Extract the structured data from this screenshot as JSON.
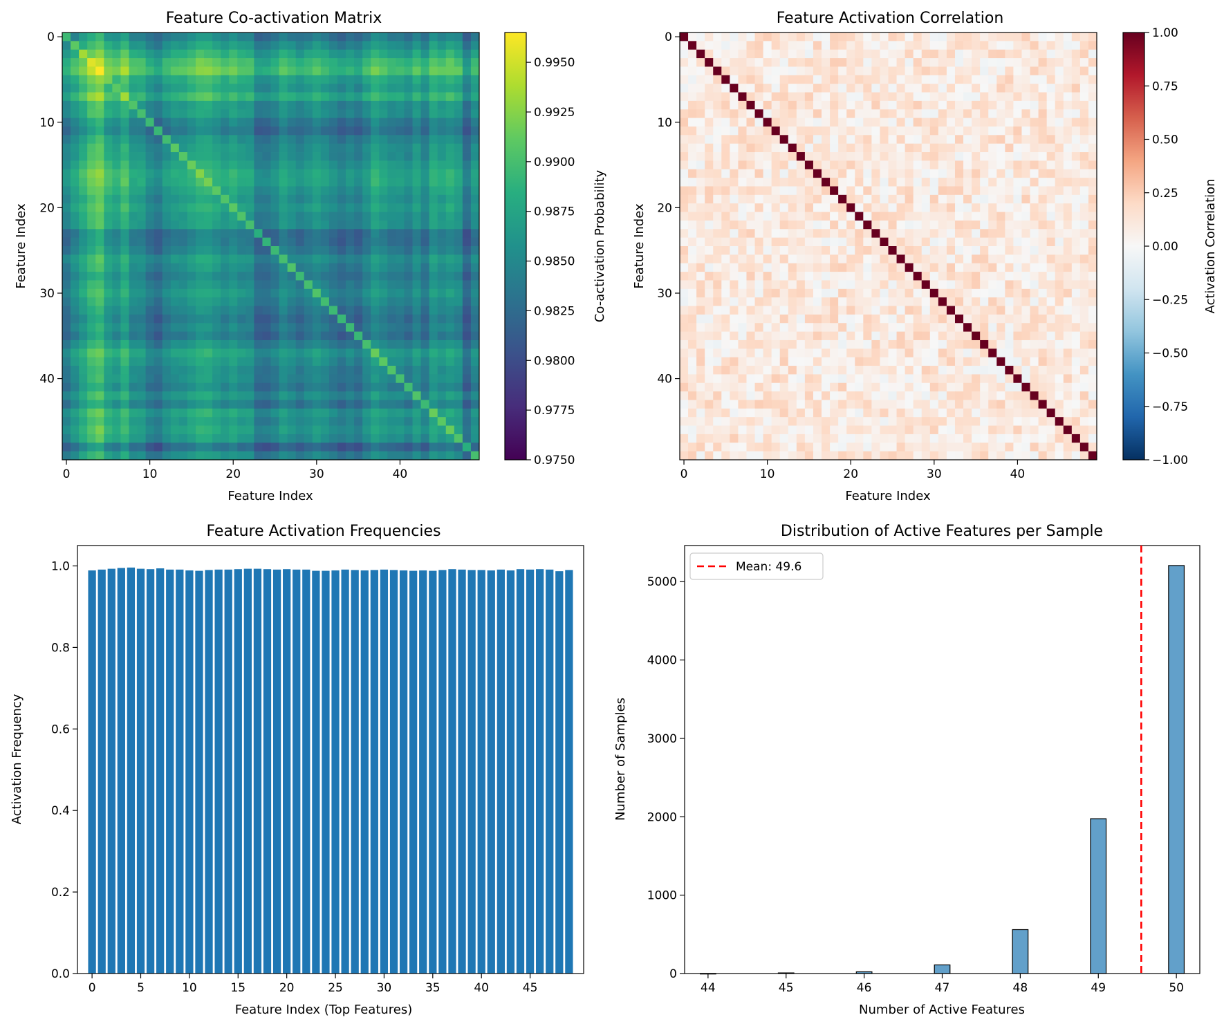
{
  "chart_data": [
    {
      "type": "heatmap",
      "title": "Feature Co-activation Matrix",
      "xlabel": "Feature Index",
      "ylabel": "Feature Index",
      "size": 50,
      "xticks": [
        0,
        10,
        20,
        30,
        40
      ],
      "yticks": [
        0,
        10,
        20,
        30,
        40
      ],
      "colormap": "viridis",
      "colorbar": {
        "label": "Co-activation Probability",
        "range": [
          0.975,
          0.9965
        ],
        "ticks": [
          "0.9950",
          "0.9925",
          "0.9900",
          "0.9875",
          "0.9850",
          "0.9825",
          "0.9800",
          "0.9775",
          "0.9750"
        ],
        "tick_values": [
          0.995,
          0.9925,
          0.99,
          0.9875,
          0.985,
          0.9825,
          0.98,
          0.9775,
          0.975
        ]
      },
      "diagonal_values": [
        0.9895,
        0.991,
        0.9935,
        0.9955,
        0.9965,
        0.992,
        0.991,
        0.9935,
        0.9905,
        0.99,
        0.9895,
        0.9893,
        0.9898,
        0.991,
        0.9908,
        0.9915,
        0.9925,
        0.992,
        0.991,
        0.9905,
        0.991,
        0.9905,
        0.99,
        0.9885,
        0.989,
        0.9895,
        0.99,
        0.9905,
        0.9895,
        0.99,
        0.9905,
        0.9898,
        0.9895,
        0.9893,
        0.9895,
        0.9893,
        0.99,
        0.9915,
        0.991,
        0.9905,
        0.99,
        0.9897,
        0.9905,
        0.9895,
        0.9915,
        0.991,
        0.9915,
        0.9905,
        0.9885,
        0.99
      ],
      "activation_frequencies": [
        0.989,
        0.991,
        0.993,
        0.995,
        0.996,
        0.993,
        0.992,
        0.994,
        0.991,
        0.991,
        0.989,
        0.988,
        0.99,
        0.991,
        0.991,
        0.992,
        0.993,
        0.993,
        0.992,
        0.991,
        0.992,
        0.991,
        0.991,
        0.988,
        0.988,
        0.989,
        0.991,
        0.99,
        0.989,
        0.99,
        0.991,
        0.99,
        0.989,
        0.988,
        0.989,
        0.988,
        0.99,
        0.992,
        0.991,
        0.99,
        0.99,
        0.989,
        0.991,
        0.989,
        0.992,
        0.991,
        0.992,
        0.991,
        0.987,
        0.99
      ]
    },
    {
      "type": "heatmap",
      "title": "Feature Activation Correlation",
      "xlabel": "Feature Index",
      "ylabel": "Feature Index",
      "size": 50,
      "xticks": [
        0,
        10,
        20,
        30,
        40
      ],
      "yticks": [
        0,
        10,
        20,
        30,
        40
      ],
      "colormap": "RdBu_r",
      "diagonal_value": 1.0,
      "offdiag_range": [
        -0.06,
        0.25
      ],
      "colorbar": {
        "label": "Activation Correlation",
        "range": [
          -1,
          1
        ],
        "ticks": [
          "1.00",
          "0.75",
          "0.50",
          "0.25",
          "0.00",
          "−0.25",
          "−0.50",
          "−0.75",
          "−1.00"
        ],
        "tick_values": [
          1,
          0.75,
          0.5,
          0.25,
          0,
          -0.25,
          -0.5,
          -0.75,
          -1
        ]
      }
    },
    {
      "type": "bar",
      "title": "Feature Activation Frequencies",
      "xlabel": "Feature Index (Top Features)",
      "ylabel": "Activation Frequency",
      "color": "#1f77b4",
      "ylim": [
        0,
        1.05
      ],
      "xlim": [
        -1.5,
        50.5
      ],
      "xticks": [
        0,
        5,
        10,
        15,
        20,
        25,
        30,
        35,
        40,
        45
      ],
      "yticks": [
        "0.0",
        "0.2",
        "0.4",
        "0.6",
        "0.8",
        "1.0"
      ],
      "ytick_values": [
        0,
        0.2,
        0.4,
        0.6,
        0.8,
        1.0
      ],
      "values": [
        0.989,
        0.991,
        0.993,
        0.995,
        0.996,
        0.993,
        0.992,
        0.994,
        0.991,
        0.991,
        0.989,
        0.988,
        0.99,
        0.991,
        0.991,
        0.992,
        0.993,
        0.993,
        0.992,
        0.991,
        0.992,
        0.991,
        0.991,
        0.988,
        0.988,
        0.989,
        0.991,
        0.99,
        0.989,
        0.99,
        0.991,
        0.99,
        0.989,
        0.988,
        0.989,
        0.988,
        0.99,
        0.992,
        0.991,
        0.99,
        0.99,
        0.989,
        0.991,
        0.989,
        0.992,
        0.991,
        0.992,
        0.991,
        0.987,
        0.99
      ]
    },
    {
      "type": "bar",
      "title": "Distribution of Active Features per Sample",
      "xlabel": "Number of Active Features",
      "ylabel": "Number of Samples",
      "color": "#1f77b4",
      "xlim": [
        43.7,
        50.3
      ],
      "ylim": [
        0,
        5460
      ],
      "xticks": [
        44,
        45,
        46,
        47,
        48,
        49,
        50
      ],
      "yticks": [
        0,
        1000,
        2000,
        3000,
        4000,
        5000
      ],
      "bin_width": 0.2,
      "bins": [
        {
          "x": 44,
          "count": 1
        },
        {
          "x": 45,
          "count": 8
        },
        {
          "x": 46,
          "count": 22
        },
        {
          "x": 47,
          "count": 110
        },
        {
          "x": 48,
          "count": 560
        },
        {
          "x": 49,
          "count": 1975
        },
        {
          "x": 50,
          "count": 5205
        }
      ],
      "mean": 49.55,
      "mean_color": "#ff0000",
      "legend": {
        "label": "Mean: 49.6",
        "position": "upper-left"
      }
    }
  ]
}
